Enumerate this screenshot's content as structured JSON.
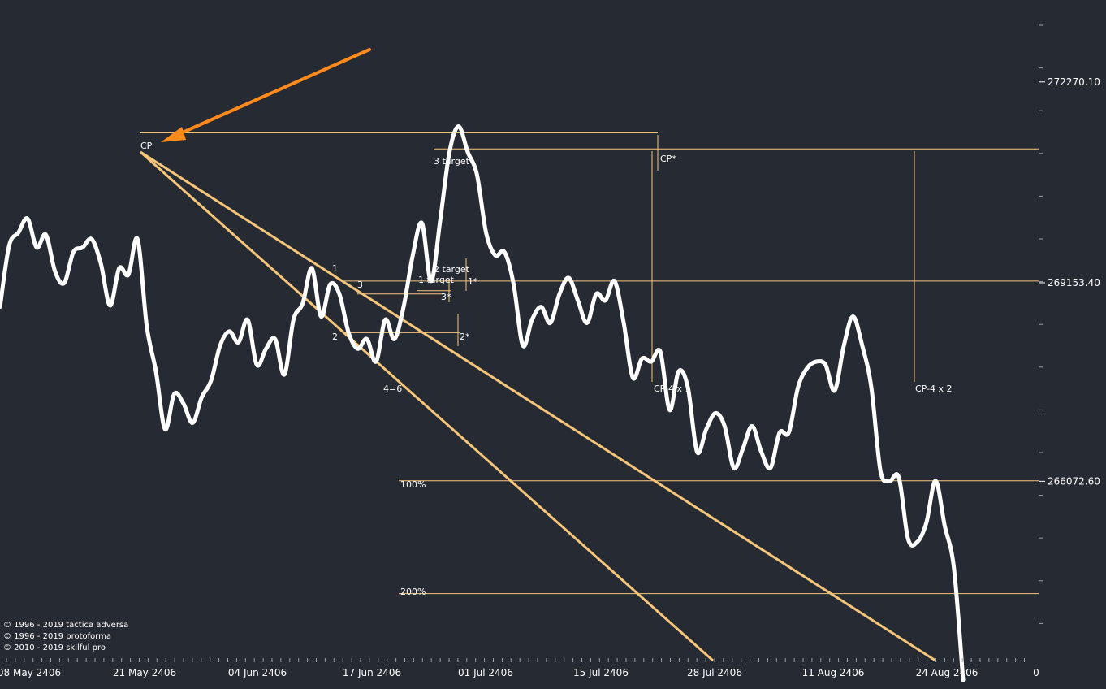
{
  "colors": {
    "background": "#262a33",
    "price_line": "#ffffff",
    "guide_line": "#f5c57a",
    "arrow": "#ff8a1c",
    "axis_text": "#ffffff"
  },
  "copyright": [
    "© 1996 - 2019 tactica adversa",
    "© 1996 - 2019 protoforma",
    "© 2010 - 2019 skilful pro"
  ],
  "chart_data": {
    "type": "line",
    "x_axis": {
      "tick_labels": [
        "08 May 2406",
        "21 May 2406",
        "04 Jun 2406",
        "17 Jun 2406",
        "01 Jul 2406",
        "15 Jul 2406",
        "28 Jul 2406",
        "11 Aug 2406",
        "24 Aug 2406",
        "0"
      ]
    },
    "y_axis": {
      "side": "right",
      "ylim": [
        262900,
        273150
      ],
      "tick_labels": [
        "272270.10",
        "269153.40",
        "266072.60"
      ],
      "tick_values": [
        272270.1,
        269153.4,
        266072.6
      ]
    },
    "series": [
      {
        "values": [
          268780,
          269730,
          269930,
          270150,
          269700,
          269900,
          269330,
          269150,
          269630,
          269700,
          269830,
          269450,
          268800,
          269380,
          269280,
          269830,
          268480,
          267780,
          266880,
          267430,
          267280,
          266980,
          267380,
          267630,
          268180,
          268400,
          268230,
          268580,
          267880,
          268130,
          268280,
          267730,
          268580,
          268830,
          269380,
          268630,
          269130,
          268980,
          268380,
          268130,
          268280,
          267930,
          268580,
          268280,
          268780,
          269580,
          270080,
          269180,
          270130,
          271180,
          271580,
          271180,
          270830,
          269930,
          269580,
          269630,
          269130,
          268180,
          268580,
          268780,
          268530,
          268980,
          269230,
          268880,
          268530,
          268980,
          268880,
          269180,
          268530,
          267680,
          267980,
          267930,
          268080,
          267180,
          267780,
          267530,
          266530,
          266880,
          267130,
          266930,
          266280,
          266580,
          266930,
          266530,
          266280,
          266830,
          266830,
          267530,
          267830,
          267930,
          267880,
          267480,
          268180,
          268630,
          268180,
          267530,
          266230,
          266080,
          266130,
          265180,
          265130,
          265430,
          266080,
          265380,
          264730,
          262990
        ]
      }
    ],
    "levels": [
      {
        "label": "3 target",
        "value": 271230
      },
      {
        "label": "2 target",
        "value": 269180
      },
      {
        "label": "1 target",
        "value": 269030
      },
      {
        "label": "100%",
        "value": 266080
      },
      {
        "label": "200%",
        "value": 264330
      }
    ],
    "annotations": [
      {
        "text": "CP",
        "y": 271480
      },
      {
        "text": "CP*",
        "y": 271280
      },
      {
        "text": "1",
        "y": 269230
      },
      {
        "text": "1*",
        "y": 268990
      },
      {
        "text": "2",
        "y": 268380
      },
      {
        "text": "2*",
        "y": 268380
      },
      {
        "text": "3",
        "y": 268980
      },
      {
        "text": "3*",
        "y": 268730
      },
      {
        "text": "4=6",
        "y": 267830
      },
      {
        "text": "CP-4 x 1",
        "y": 267830
      },
      {
        "text": "CP-4 x 2",
        "y": 267830
      }
    ]
  }
}
